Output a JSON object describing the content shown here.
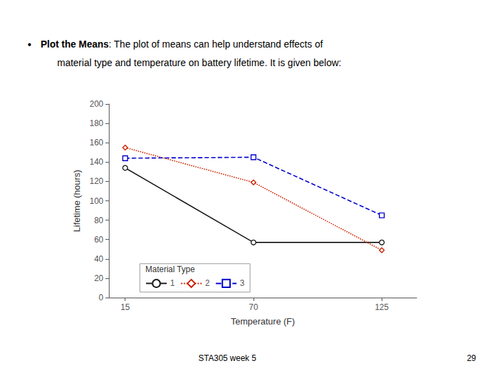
{
  "chart_data": {
    "type": "line",
    "annotations": [
      "•",
      "Plot the Means",
      ": The plot of means can help understand effects of",
      "material type and temperature on battery lifetime. It is given below:",
      "STA305 week 5",
      "29"
    ],
    "legend_title": "Material Type",
    "xlabel": "Temperature (F)",
    "ylabel": "Lifetime (hours)",
    "x": [
      15,
      70,
      125
    ],
    "series": [
      {
        "name": "1",
        "color": "#1a1a1a",
        "marker": "circle",
        "line_style": "solid",
        "values": [
          134,
          57,
          57
        ]
      },
      {
        "name": "2",
        "color": "#cc2200",
        "marker": "diamond",
        "line_style": "dotted",
        "values": [
          155,
          119,
          49
        ]
      },
      {
        "name": "3",
        "color": "#0000cc",
        "marker": "square",
        "line_style": "dashed",
        "values": [
          144,
          145,
          85
        ]
      }
    ],
    "xlim": [
      8,
      140
    ],
    "xticks": [
      15,
      70,
      125
    ],
    "ylim": [
      0,
      200
    ],
    "yticks": [
      0,
      20,
      40,
      60,
      80,
      100,
      120,
      140,
      160,
      180,
      200
    ],
    "grid": false,
    "legend": "lower left"
  }
}
